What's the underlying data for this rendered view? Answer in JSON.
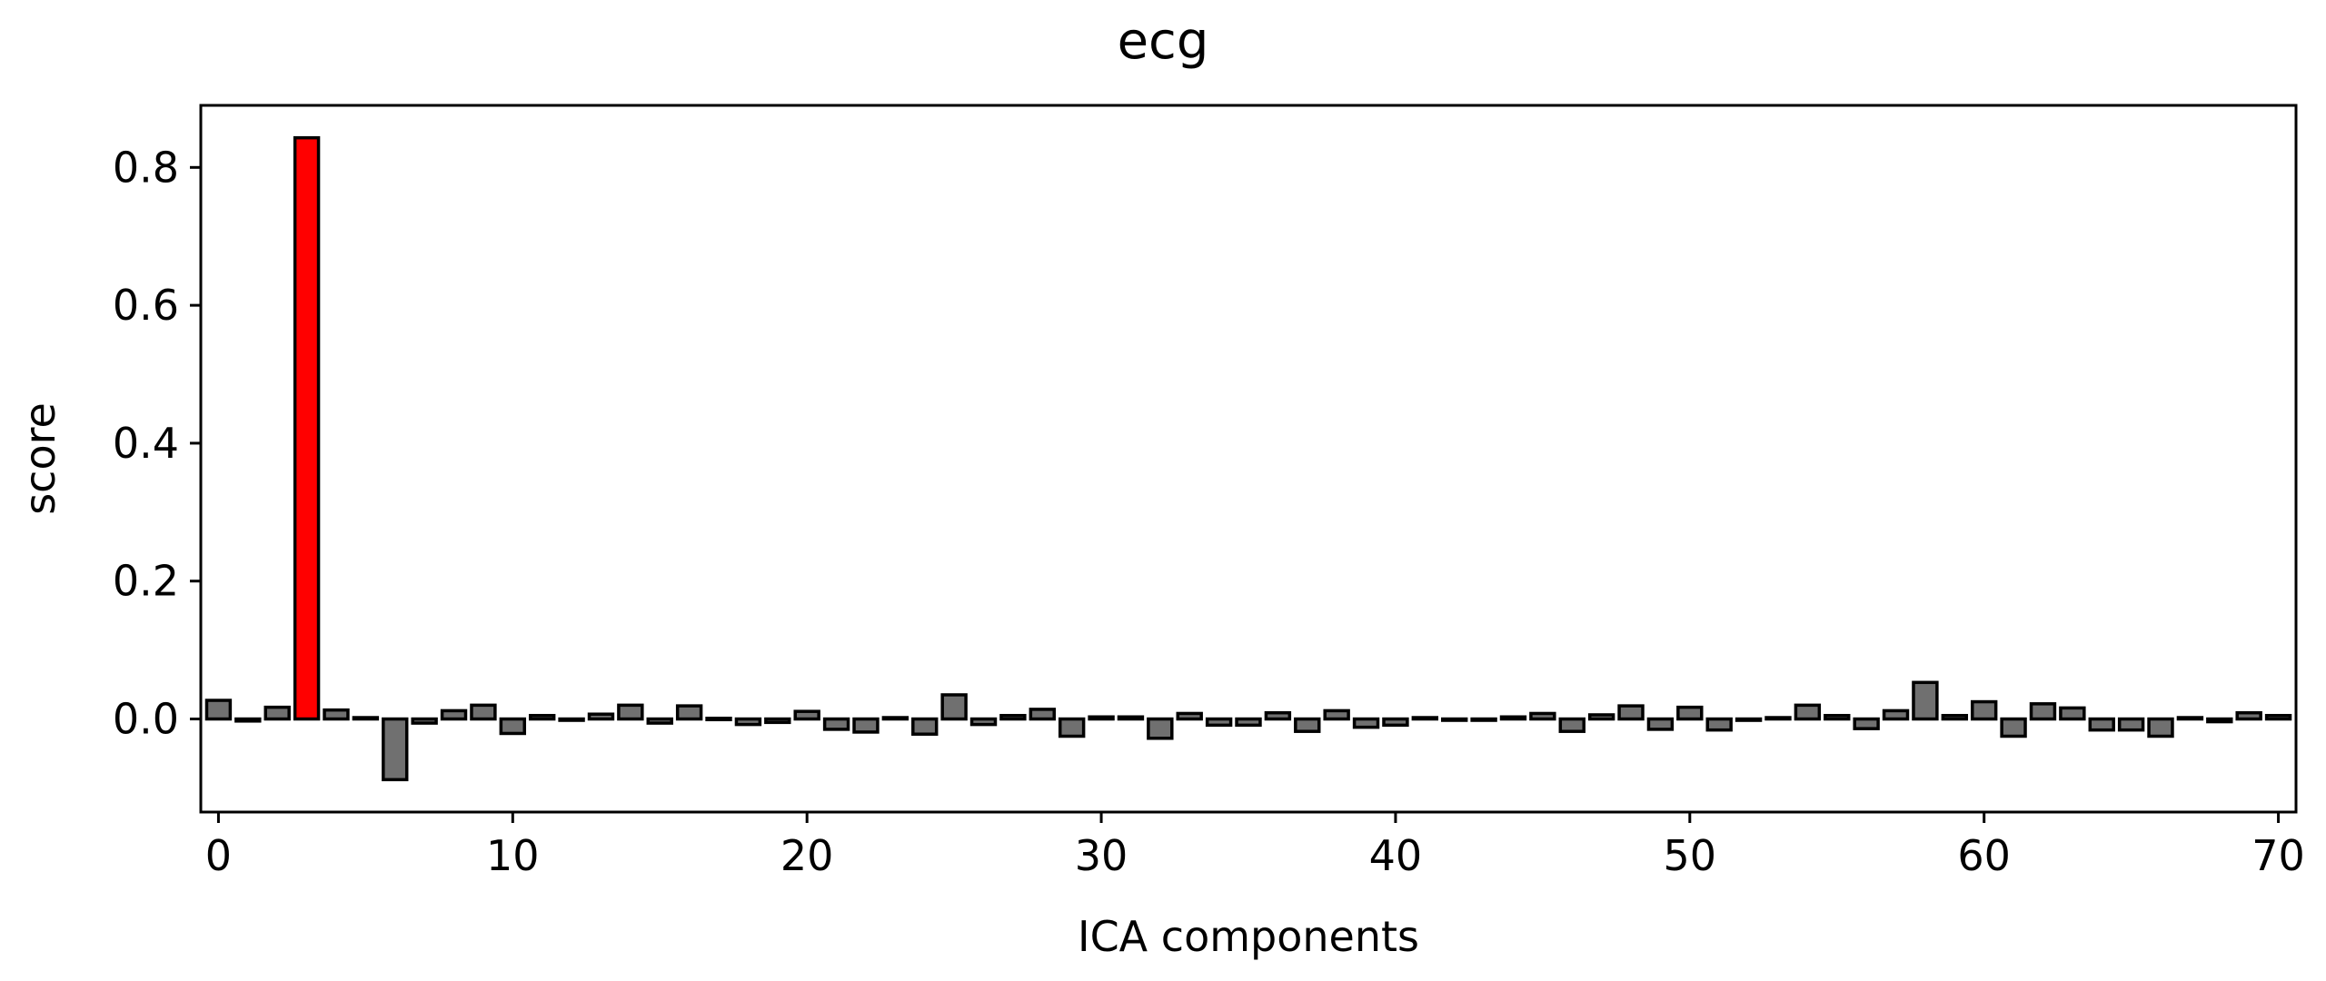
{
  "chart_data": {
    "type": "bar",
    "title": "ecg",
    "xlabel": "ICA components",
    "ylabel": "score",
    "xlim": [
      -0.6,
      70.6
    ],
    "ylim": [
      -0.135,
      0.89
    ],
    "xticks": [
      0,
      10,
      20,
      30,
      40,
      50,
      60,
      70
    ],
    "xtick_labels": [
      "0",
      "10",
      "20",
      "30",
      "40",
      "50",
      "60",
      "70"
    ],
    "yticks": [
      0.0,
      0.2,
      0.4,
      0.6,
      0.8
    ],
    "ytick_labels": [
      "0.0",
      "0.2",
      "0.4",
      "0.6",
      "0.8"
    ],
    "grid": false,
    "legend": "none",
    "highlighted_components": [
      3
    ],
    "colors": {
      "bar": "#707070",
      "highlight": "#ff0000",
      "edge": "#000000"
    },
    "x": [
      0,
      1,
      2,
      3,
      4,
      5,
      6,
      7,
      8,
      9,
      10,
      11,
      12,
      13,
      14,
      15,
      16,
      17,
      18,
      19,
      20,
      21,
      22,
      23,
      24,
      25,
      26,
      27,
      28,
      29,
      30,
      31,
      32,
      33,
      34,
      35,
      36,
      37,
      38,
      39,
      40,
      41,
      42,
      43,
      44,
      45,
      46,
      47,
      48,
      49,
      50,
      51,
      52,
      53,
      54,
      55,
      56,
      57,
      58,
      59,
      60,
      61,
      62,
      63,
      64,
      65,
      66,
      67,
      68,
      69,
      70
    ],
    "values": [
      0.027,
      -0.003,
      0.017,
      0.843,
      0.013,
      0.002,
      -0.088,
      -0.006,
      0.012,
      0.02,
      -0.021,
      0.005,
      0.0,
      0.007,
      0.02,
      -0.006,
      0.019,
      0.001,
      -0.008,
      -0.005,
      0.011,
      -0.015,
      -0.019,
      0.002,
      -0.022,
      0.035,
      -0.008,
      0.005,
      0.014,
      -0.025,
      0.003,
      0.003,
      -0.028,
      0.008,
      -0.009,
      -0.009,
      0.009,
      -0.018,
      0.012,
      -0.012,
      -0.009,
      0.002,
      0.0,
      0.0,
      0.003,
      0.008,
      -0.018,
      0.006,
      0.019,
      -0.015,
      0.017,
      -0.016,
      -0.002,
      0.002,
      0.02,
      0.005,
      -0.014,
      0.012,
      0.053,
      0.005,
      0.025,
      -0.025,
      0.022,
      0.016,
      -0.016,
      -0.016,
      -0.025,
      0.002,
      -0.004,
      0.009,
      0.005
    ]
  }
}
